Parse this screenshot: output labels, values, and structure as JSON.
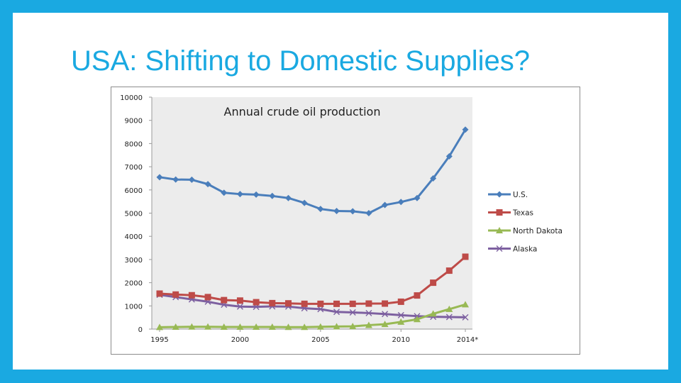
{
  "slide": {
    "title": "USA: Shifting to Domestic Supplies?"
  },
  "colors": {
    "frame": "#1aa9e1",
    "plot_bg": "#ececec",
    "us": "#4a7ebb",
    "texas": "#be4b48",
    "north_dakota": "#98b954",
    "alaska": "#7d60a0"
  },
  "chart_data": {
    "type": "line",
    "title": "Annual crude oil production",
    "xlabel": "",
    "ylabel": "",
    "ylim": [
      0,
      10000
    ],
    "yticks": [
      0,
      1000,
      2000,
      3000,
      4000,
      5000,
      6000,
      7000,
      8000,
      9000,
      10000
    ],
    "x": [
      1995,
      1996,
      1997,
      1998,
      1999,
      2000,
      2001,
      2002,
      2003,
      2004,
      2005,
      2006,
      2007,
      2008,
      2009,
      2010,
      2011,
      2012,
      2013,
      2014
    ],
    "xtick_labels": [
      "1995",
      "2000",
      "2005",
      "2010",
      "2014*"
    ],
    "legend_position": "right",
    "grid": false,
    "series": [
      {
        "name": "U.S.",
        "marker": "diamond",
        "color": "#4a7ebb",
        "values": [
          6550,
          6450,
          6440,
          6250,
          5880,
          5820,
          5800,
          5740,
          5650,
          5440,
          5180,
          5090,
          5080,
          5000,
          5350,
          5480,
          5650,
          6500,
          7450,
          8600
        ]
      },
      {
        "name": "Texas",
        "marker": "square",
        "color": "#be4b48",
        "values": [
          1530,
          1490,
          1460,
          1380,
          1250,
          1230,
          1160,
          1120,
          1110,
          1090,
          1090,
          1090,
          1090,
          1100,
          1100,
          1180,
          1450,
          2000,
          2520,
          3120
        ]
      },
      {
        "name": "North Dakota",
        "marker": "triangle",
        "color": "#98b954",
        "values": [
          80,
          90,
          100,
          100,
          90,
          90,
          90,
          90,
          85,
          85,
          100,
          110,
          120,
          170,
          210,
          310,
          420,
          660,
          860,
          1060
        ]
      },
      {
        "name": "Alaska",
        "marker": "x",
        "color": "#7d60a0",
        "values": [
          1480,
          1380,
          1280,
          1180,
          1050,
          970,
          960,
          980,
          970,
          900,
          860,
          740,
          720,
          690,
          650,
          600,
          560,
          530,
          520,
          510
        ]
      }
    ]
  }
}
